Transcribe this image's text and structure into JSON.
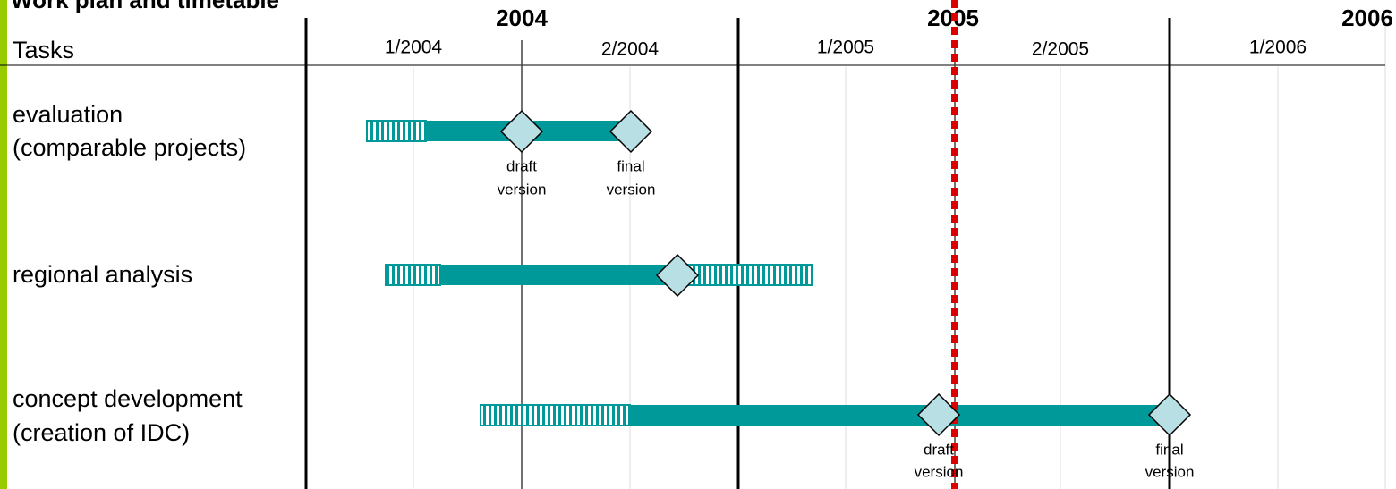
{
  "header": {
    "title": "Work plan and timetable",
    "tasks_label": "Tasks",
    "years": [
      "2004",
      "2005",
      "2006"
    ],
    "halves": [
      "1/2004",
      "2/2004",
      "1/2005",
      "2/2005",
      "1/2006"
    ]
  },
  "tasks": [
    {
      "lines": [
        "evaluation",
        "(comparable projects)"
      ],
      "milestones": [
        [
          "draft",
          "version"
        ],
        [
          "final",
          "version"
        ]
      ]
    },
    {
      "lines": [
        "regional analysis"
      ]
    },
    {
      "lines": [
        "concept development",
        "(creation of IDC)"
      ],
      "milestones": [
        [
          "draft",
          "version"
        ],
        [
          "final",
          "version"
        ]
      ]
    }
  ]
}
